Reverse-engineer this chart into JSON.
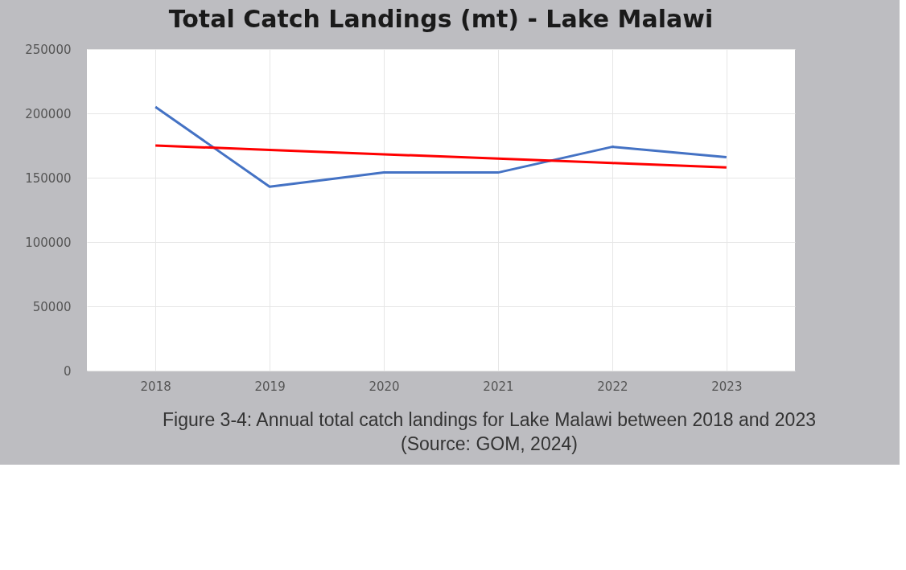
{
  "chart_data": {
    "type": "line",
    "title": "Total Catch Landings (mt) - Lake Malawi",
    "categories": [
      "2018",
      "2019",
      "2020",
      "2021",
      "2022",
      "2023"
    ],
    "series": [
      {
        "color": "#4472c4",
        "values": [
          205000,
          143000,
          154000,
          154000,
          174000,
          166000
        ]
      },
      {
        "type": "line",
        "color": "#ff0000",
        "values": [
          175000,
          171600,
          168200,
          164800,
          161400,
          158000
        ]
      }
    ],
    "ylim": [
      0,
      250000
    ],
    "yticks": [
      0,
      50000,
      100000,
      150000,
      200000,
      250000
    ],
    "grid": true,
    "marker": "none",
    "line_style": "solid",
    "annotations": [
      "Figure 3-4: Annual total catch landings for Lake Malawi between 2018 and 2023",
      "(Source: GOM, 2024)"
    ]
  }
}
